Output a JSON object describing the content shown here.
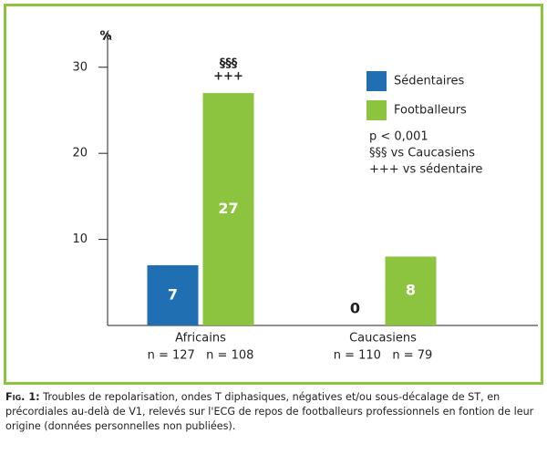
{
  "chart_data": {
    "type": "bar",
    "y_label": "%",
    "categories": [
      "Africains",
      "Caucasiens"
    ],
    "category_notes": [
      "n = 127   n = 108",
      "n = 110   n = 79"
    ],
    "series": [
      {
        "name": "Sédentaires",
        "color": "#1f6fb2",
        "values": [
          7,
          0
        ]
      },
      {
        "name": "Footballeurs",
        "color": "#8dc43f",
        "values": [
          27,
          8
        ]
      }
    ],
    "ylim": [
      0,
      34
    ],
    "yticks": [
      10,
      20,
      30
    ],
    "annotations": [
      "§§§",
      "+++"
    ],
    "notes": [
      "p < 0,001",
      "§§§ vs Caucasiens",
      "+++ vs sédentaire"
    ],
    "caption_label": "Fig. 1:",
    "caption": "Troubles de repolarisation, ondes T diphasiques, négatives et/ou sous-décalage de ST, en précordiales au-delà de V1, relevés sur l'ECG de repos de footballeurs professionnels en fontion de leur origine (données personnelles non publiées)."
  }
}
